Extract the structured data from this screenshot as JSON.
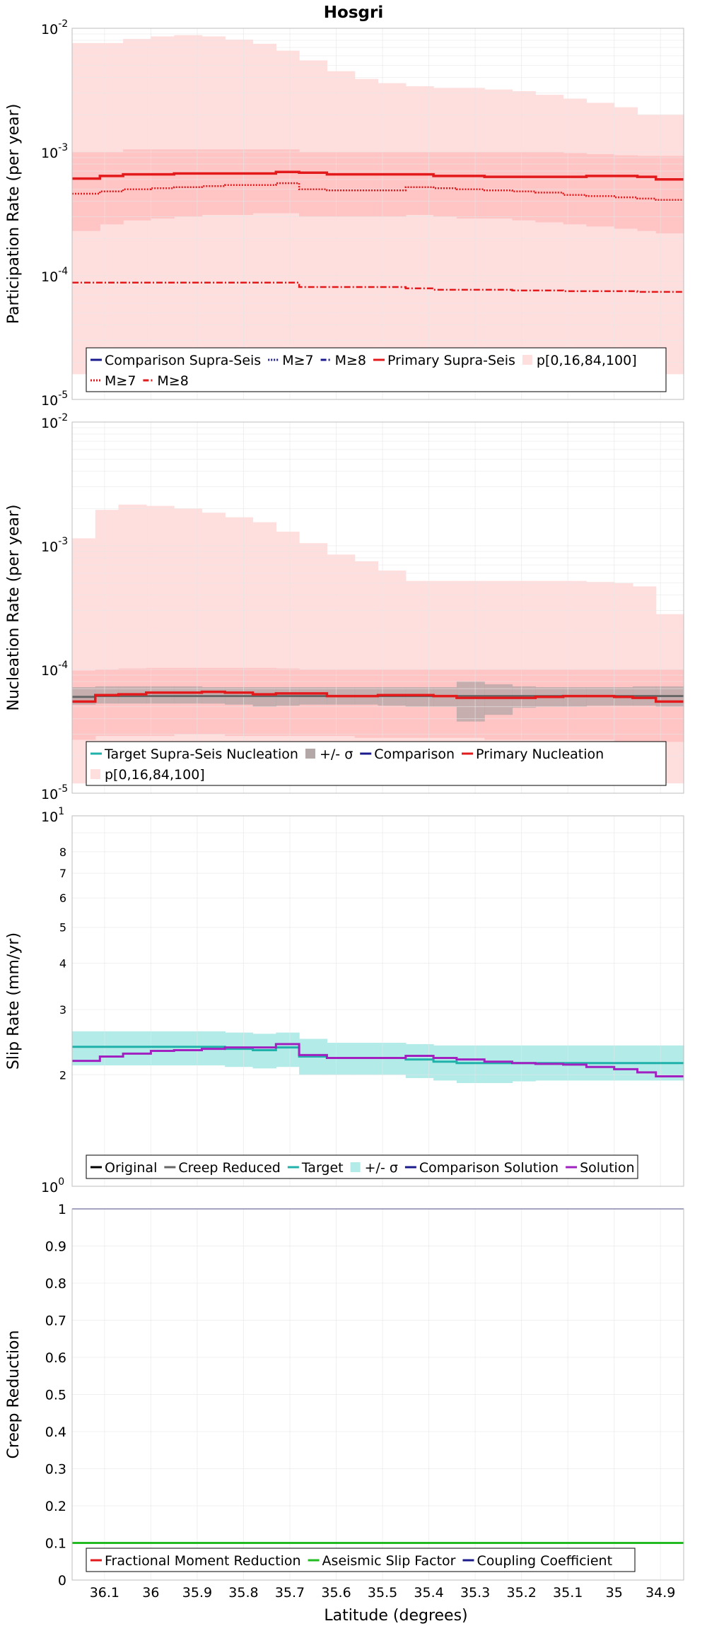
{
  "title": "Hosgri",
  "xlabel": "Latitude (degrees)",
  "x_ticks": [
    "36.1",
    "36",
    "35.9",
    "35.8",
    "35.7",
    "35.6",
    "35.5",
    "35.4",
    "35.3",
    "35.2",
    "35.1",
    "35",
    "34.9"
  ],
  "xlim": [
    36.17,
    34.85
  ],
  "colors": {
    "pink_band": "#ffdede",
    "pink_inner": "#ffc4c4",
    "red": "#e31a1c",
    "teal": "#20b2aa",
    "teal_band": "#b2ebe8",
    "gray": "#666666",
    "gray_band": "#b4a7a7",
    "purple": "#a020c0",
    "blue": "#1a1a8c",
    "green": "#22bb22"
  },
  "chart_data": [
    {
      "type": "line",
      "id": "participation",
      "ylabel": "Participation Rate (per year)",
      "yscale": "log",
      "ylim": [
        1e-05,
        0.01
      ],
      "y_ticks": [
        {
          "base": "10",
          "exp": "-5"
        },
        {
          "base": "10",
          "exp": "-4"
        },
        {
          "base": "10",
          "exp": "-3"
        },
        {
          "base": "10",
          "exp": "-2"
        }
      ],
      "bin_edges": [
        36.17,
        36.11,
        36.06,
        36.0,
        35.95,
        35.89,
        35.84,
        35.78,
        35.73,
        35.68,
        35.62,
        35.56,
        35.51,
        35.45,
        35.39,
        35.34,
        35.28,
        35.22,
        35.17,
        35.11,
        35.06,
        35.0,
        34.95,
        34.91,
        34.85
      ],
      "bands": [
        {
          "name": "p[0,16,84,100] outer",
          "lower": [
            1.6e-05,
            1.6e-05,
            1.6e-05,
            1.6e-05,
            1.6e-05,
            1.6e-05,
            1.6e-05,
            1.6e-05,
            1.6e-05,
            1.6e-05,
            1.6e-05,
            1.6e-05,
            1.6e-05,
            1.6e-05,
            1.6e-05,
            1.6e-05,
            1.6e-05,
            1.6e-05,
            1.6e-05,
            1.6e-05,
            1.6e-05,
            1.6e-05,
            1.6e-05,
            1.6e-05
          ],
          "upper": [
            0.0076,
            0.0076,
            0.0082,
            0.0086,
            0.0088,
            0.0086,
            0.0081,
            0.0075,
            0.0066,
            0.0055,
            0.0045,
            0.0039,
            0.0036,
            0.0034,
            0.0033,
            0.0033,
            0.0032,
            0.0031,
            0.0029,
            0.0027,
            0.0025,
            0.0023,
            0.002,
            0.002
          ]
        },
        {
          "name": "p[0,16,84,100] inner",
          "lower": [
            0.00023,
            0.00026,
            0.00028,
            0.00029,
            0.0003,
            0.00031,
            0.00031,
            0.00032,
            0.00032,
            0.0003,
            0.0003,
            0.0003,
            0.0003,
            0.00031,
            0.0003,
            0.00029,
            0.00029,
            0.00028,
            0.00027,
            0.00026,
            0.00025,
            0.00024,
            0.00023,
            0.00022
          ],
          "upper": [
            0.001,
            0.001,
            0.00105,
            0.00105,
            0.00105,
            0.00105,
            0.00105,
            0.00105,
            0.00105,
            0.001,
            0.001,
            0.001,
            0.001,
            0.001,
            0.001,
            0.001,
            0.001,
            0.001,
            0.001,
            0.00098,
            0.00096,
            0.00094,
            0.00093,
            0.00093
          ]
        }
      ],
      "series": [
        {
          "name": "Primary Supra-Seis",
          "style": "solid",
          "values": [
            0.00061,
            0.00064,
            0.00066,
            0.00066,
            0.00067,
            0.00067,
            0.00067,
            0.00067,
            0.00069,
            0.00068,
            0.00066,
            0.00066,
            0.00066,
            0.00066,
            0.00064,
            0.00064,
            0.00063,
            0.00063,
            0.00063,
            0.00063,
            0.00064,
            0.00064,
            0.00063,
            0.0006
          ]
        },
        {
          "name": "M≥7",
          "style": "dotted",
          "values": [
            0.00046,
            0.00048,
            0.0005,
            0.00051,
            0.00052,
            0.00053,
            0.00054,
            0.00054,
            0.00056,
            0.0005,
            0.00049,
            0.00049,
            0.00049,
            0.00052,
            0.00051,
            0.0005,
            0.00049,
            0.00048,
            0.00047,
            0.00045,
            0.00044,
            0.00043,
            0.00042,
            0.00041
          ]
        },
        {
          "name": "M≥8",
          "style": "dashdot",
          "values": [
            8.8e-05,
            8.8e-05,
            8.8e-05,
            8.8e-05,
            8.8e-05,
            8.8e-05,
            8.8e-05,
            8.8e-05,
            8.8e-05,
            8.1e-05,
            8.1e-05,
            8.1e-05,
            8.1e-05,
            7.9e-05,
            7.7e-05,
            7.7e-05,
            7.7e-05,
            7.6e-05,
            7.6e-05,
            7.5e-05,
            7.5e-05,
            7.5e-05,
            7.4e-05,
            7.4e-05
          ]
        }
      ],
      "legend": [
        {
          "label": "Comparison Supra-Seis",
          "swatch": "blue-solid"
        },
        {
          "label": "M≥7",
          "swatch": "blue-dotted"
        },
        {
          "label": "M≥8",
          "swatch": "blue-dashdot"
        },
        {
          "label": "Primary Supra-Seis",
          "swatch": "red-solid"
        },
        {
          "label": "p[0,16,84,100]",
          "swatch": "pink-box"
        },
        {
          "label": "M≥7",
          "swatch": "red-dotted"
        },
        {
          "label": "M≥8",
          "swatch": "red-dashdot"
        }
      ]
    },
    {
      "type": "line",
      "id": "nucleation",
      "ylabel": "Nucleation Rate (per year)",
      "yscale": "log",
      "ylim": [
        1e-05,
        0.01
      ],
      "y_ticks": [
        {
          "base": "10",
          "exp": "-5"
        },
        {
          "base": "10",
          "exp": "-4"
        },
        {
          "base": "10",
          "exp": "-3"
        },
        {
          "base": "10",
          "exp": "-2"
        }
      ],
      "bin_edges": [
        36.17,
        36.12,
        36.07,
        36.01,
        35.95,
        35.89,
        35.84,
        35.78,
        35.73,
        35.68,
        35.62,
        35.56,
        35.51,
        35.45,
        35.39,
        35.34,
        35.28,
        35.22,
        35.17,
        35.11,
        35.06,
        35.0,
        34.96,
        34.91,
        34.85
      ],
      "bands": [
        {
          "name": "p[0,16,84,100] outer",
          "lower": [
            1.2e-05,
            1.3e-05,
            1.3e-05,
            1.3e-05,
            1.3e-05,
            1.3e-05,
            1.3e-05,
            1.3e-05,
            1.3e-05,
            1.3e-05,
            1.3e-05,
            1.3e-05,
            1.3e-05,
            1.3e-05,
            1.3e-05,
            1.3e-05,
            1.3e-05,
            1.3e-05,
            1.3e-05,
            1.3e-05,
            1.3e-05,
            1.3e-05,
            1.3e-05,
            1.2e-05
          ],
          "upper": [
            0.00115,
            0.00195,
            0.00215,
            0.0021,
            0.002,
            0.00185,
            0.0017,
            0.00155,
            0.0013,
            0.00105,
            0.00085,
            0.00075,
            0.00063,
            0.00052,
            0.00052,
            0.00052,
            0.00052,
            0.00052,
            0.00052,
            0.00052,
            0.00051,
            0.0005,
            0.00047,
            0.00028
          ]
        },
        {
          "name": "p[0,16,84,100] inner",
          "lower": [
            2.7e-05,
            2.9e-05,
            2.9e-05,
            2.9e-05,
            3e-05,
            3e-05,
            2.9e-05,
            2.9e-05,
            2.9e-05,
            2.9e-05,
            2.9e-05,
            2.8e-05,
            2.8e-05,
            2.8e-05,
            2.8e-05,
            2.8e-05,
            2.7e-05,
            2.7e-05,
            2.7e-05,
            2.7e-05,
            2.7e-05,
            2.6e-05,
            2.6e-05,
            2.6e-05
          ],
          "upper": [
            9.8e-05,
            0.0001,
            0.000102,
            0.000103,
            0.000103,
            0.000103,
            0.000103,
            0.000103,
            0.000102,
            0.0001,
            0.0001,
            0.0001,
            0.0001,
            0.0001,
            0.0001,
            0.0001,
            0.0001,
            0.0001,
            0.0001,
            0.0001,
            0.0001,
            0.0001,
            0.0001,
            0.0001
          ]
        },
        {
          "name": "+/- σ",
          "lower": [
            5.2e-05,
            5.3e-05,
            5.3e-05,
            5.3e-05,
            5.3e-05,
            5.3e-05,
            5.2e-05,
            5e-05,
            5.1e-05,
            5.2e-05,
            5.2e-05,
            5.2e-05,
            5.1e-05,
            5e-05,
            5e-05,
            3.8e-05,
            4.3e-05,
            4.9e-05,
            5e-05,
            5e-05,
            5.1e-05,
            5.1e-05,
            5.1e-05,
            5e-05
          ],
          "upper": [
            7.2e-05,
            7.3e-05,
            7.3e-05,
            7.3e-05,
            7.3e-05,
            7.2e-05,
            7.2e-05,
            7.2e-05,
            7.2e-05,
            7.2e-05,
            7.2e-05,
            7.2e-05,
            7.2e-05,
            7.2e-05,
            7.2e-05,
            8e-05,
            7.6e-05,
            7.3e-05,
            7.2e-05,
            7.2e-05,
            7.2e-05,
            7.2e-05,
            7.3e-05,
            7.3e-05
          ]
        }
      ],
      "series": [
        {
          "name": "Target Supra-Seis Nucleation",
          "style": "gray-solid",
          "values": [
            6e-05,
            6.1e-05,
            6.1e-05,
            6.1e-05,
            6.1e-05,
            6.1e-05,
            6.1e-05,
            6.1e-05,
            6.1e-05,
            6.1e-05,
            6.1e-05,
            6.1e-05,
            6.1e-05,
            6.1e-05,
            6.1e-05,
            6.1e-05,
            6.1e-05,
            6.1e-05,
            6.1e-05,
            6.1e-05,
            6.1e-05,
            6.1e-05,
            6.1e-05,
            6.1e-05
          ]
        },
        {
          "name": "Primary Nucleation",
          "style": "solid",
          "values": [
            5.5e-05,
            6.2e-05,
            6.3e-05,
            6.5e-05,
            6.5e-05,
            6.6e-05,
            6.5e-05,
            6.3e-05,
            6.4e-05,
            6.4e-05,
            6.1e-05,
            6.1e-05,
            6.2e-05,
            6.2e-05,
            6.1e-05,
            5.9e-05,
            5.9e-05,
            5.9e-05,
            6e-05,
            6.1e-05,
            6.1e-05,
            6e-05,
            5.9e-05,
            5.5e-05
          ]
        }
      ],
      "legend": [
        {
          "label": "Target Supra-Seis Nucleation",
          "swatch": "teal-solid"
        },
        {
          "label": "+/- σ",
          "swatch": "gray-box"
        },
        {
          "label": "Comparison",
          "swatch": "blue-solid"
        },
        {
          "label": "Primary Nucleation",
          "swatch": "red-solid"
        },
        {
          "label": "p[0,16,84,100]",
          "swatch": "pink-box"
        }
      ]
    },
    {
      "type": "line",
      "id": "slip",
      "ylabel": "Slip Rate (mm/yr)",
      "yscale": "log",
      "ylim": [
        1,
        10
      ],
      "y_ticks": [
        {
          "base": "10",
          "exp": "0"
        },
        {
          "base": "10",
          "exp": "1"
        }
      ],
      "minor_ticks": [
        "2",
        "3",
        "4",
        "5",
        "6",
        "7",
        "8"
      ],
      "bin_edges": [
        36.17,
        36.11,
        36.06,
        36.0,
        35.95,
        35.89,
        35.84,
        35.78,
        35.73,
        35.68,
        35.62,
        35.56,
        35.51,
        35.45,
        35.39,
        35.34,
        35.28,
        35.22,
        35.17,
        35.11,
        35.06,
        35.0,
        34.95,
        34.91,
        34.85
      ],
      "bands": [
        {
          "name": "+/- σ",
          "lower": [
            2.12,
            2.12,
            2.12,
            2.12,
            2.12,
            2.12,
            2.1,
            2.08,
            2.1,
            2.0,
            2.0,
            2.0,
            2.0,
            1.96,
            1.93,
            1.9,
            1.9,
            1.92,
            1.93,
            1.93,
            1.93,
            1.93,
            1.93,
            1.93
          ],
          "upper": [
            2.62,
            2.62,
            2.62,
            2.62,
            2.62,
            2.62,
            2.6,
            2.58,
            2.6,
            2.5,
            2.44,
            2.44,
            2.44,
            2.42,
            2.4,
            2.4,
            2.4,
            2.4,
            2.4,
            2.4,
            2.4,
            2.4,
            2.4,
            2.4
          ]
        }
      ],
      "series": [
        {
          "name": "Target",
          "style": "teal-solid",
          "values": [
            2.38,
            2.38,
            2.38,
            2.38,
            2.38,
            2.38,
            2.35,
            2.33,
            2.37,
            2.24,
            2.22,
            2.22,
            2.22,
            2.2,
            2.17,
            2.15,
            2.15,
            2.15,
            2.15,
            2.15,
            2.15,
            2.15,
            2.15,
            2.15
          ]
        },
        {
          "name": "Solution",
          "style": "purple-solid",
          "values": [
            2.18,
            2.24,
            2.28,
            2.32,
            2.33,
            2.35,
            2.37,
            2.37,
            2.42,
            2.26,
            2.22,
            2.22,
            2.22,
            2.25,
            2.22,
            2.2,
            2.17,
            2.15,
            2.14,
            2.13,
            2.1,
            2.07,
            2.03,
            1.98
          ]
        }
      ],
      "legend": [
        {
          "label": "Original",
          "swatch": "black-solid"
        },
        {
          "label": "Creep Reduced",
          "swatch": "gray-solid"
        },
        {
          "label": "Target",
          "swatch": "teal-solid"
        },
        {
          "label": "+/- σ",
          "swatch": "teal-box"
        },
        {
          "label": "Comparison Solution",
          "swatch": "blue-solid"
        },
        {
          "label": "Solution",
          "swatch": "purple-solid"
        }
      ]
    },
    {
      "type": "line",
      "id": "creep",
      "ylabel": "Creep Reduction",
      "yscale": "linear",
      "ylim": [
        0,
        1
      ],
      "y_ticks": [
        "0",
        "0.1",
        "0.2",
        "0.3",
        "0.4",
        "0.5",
        "0.6",
        "0.7",
        "0.8",
        "0.9",
        "1"
      ],
      "series": [
        {
          "name": "Aseismic Slip Factor",
          "style": "green-solid",
          "values": [
            0.1,
            0.1
          ]
        },
        {
          "name": "Coupling Coefficient",
          "style": "blue-solid",
          "values": [
            1,
            1
          ]
        }
      ],
      "legend": [
        {
          "label": "Fractional Moment Reduction",
          "swatch": "red-solid"
        },
        {
          "label": "Aseismic Slip Factor",
          "swatch": "green-solid"
        },
        {
          "label": "Coupling Coefficient",
          "swatch": "blue-solid"
        }
      ]
    }
  ]
}
